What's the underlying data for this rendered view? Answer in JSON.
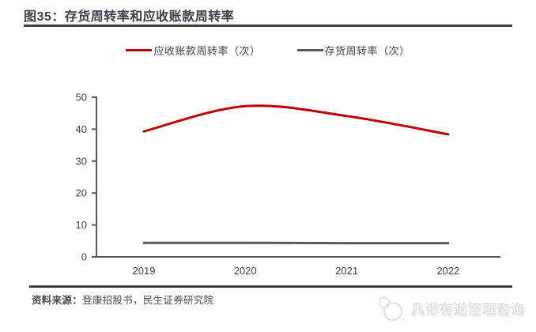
{
  "figure": {
    "title": "图35：存货周转率和应收账款周转率",
    "source_label": "资料来源：",
    "source_text": "登康招股书，民生证券研究院",
    "watermark": "凡谋有道管理咨询"
  },
  "colors": {
    "accent_red": "#c00000",
    "line_gray": "#595959",
    "axis_gray": "#595959",
    "text_dark": "#404040",
    "rule_dark": "#3f3f3f",
    "watermark_gray": "#e0e0e0"
  },
  "chart_data": {
    "type": "line",
    "title": "图35：存货周转率和应收账款周转率",
    "x": [
      "2019",
      "2020",
      "2021",
      "2022"
    ],
    "series": [
      {
        "name": "应收账款周转率（次）",
        "color": "#c00000",
        "smooth": true,
        "values": [
          39.3,
          47.2,
          44.1,
          38.4
        ]
      },
      {
        "name": "存货周转率（次）",
        "color": "#595959",
        "smooth": false,
        "values": [
          4.4,
          4.4,
          4.3,
          4.3
        ]
      }
    ],
    "xlabel": "",
    "ylabel": "",
    "ylim": [
      0,
      50
    ],
    "yticks": [
      0,
      10,
      20,
      30,
      40,
      50
    ],
    "grid": false,
    "legend_position": "top-center",
    "axis_color": "#595959",
    "tick_label_color": "#404040"
  }
}
